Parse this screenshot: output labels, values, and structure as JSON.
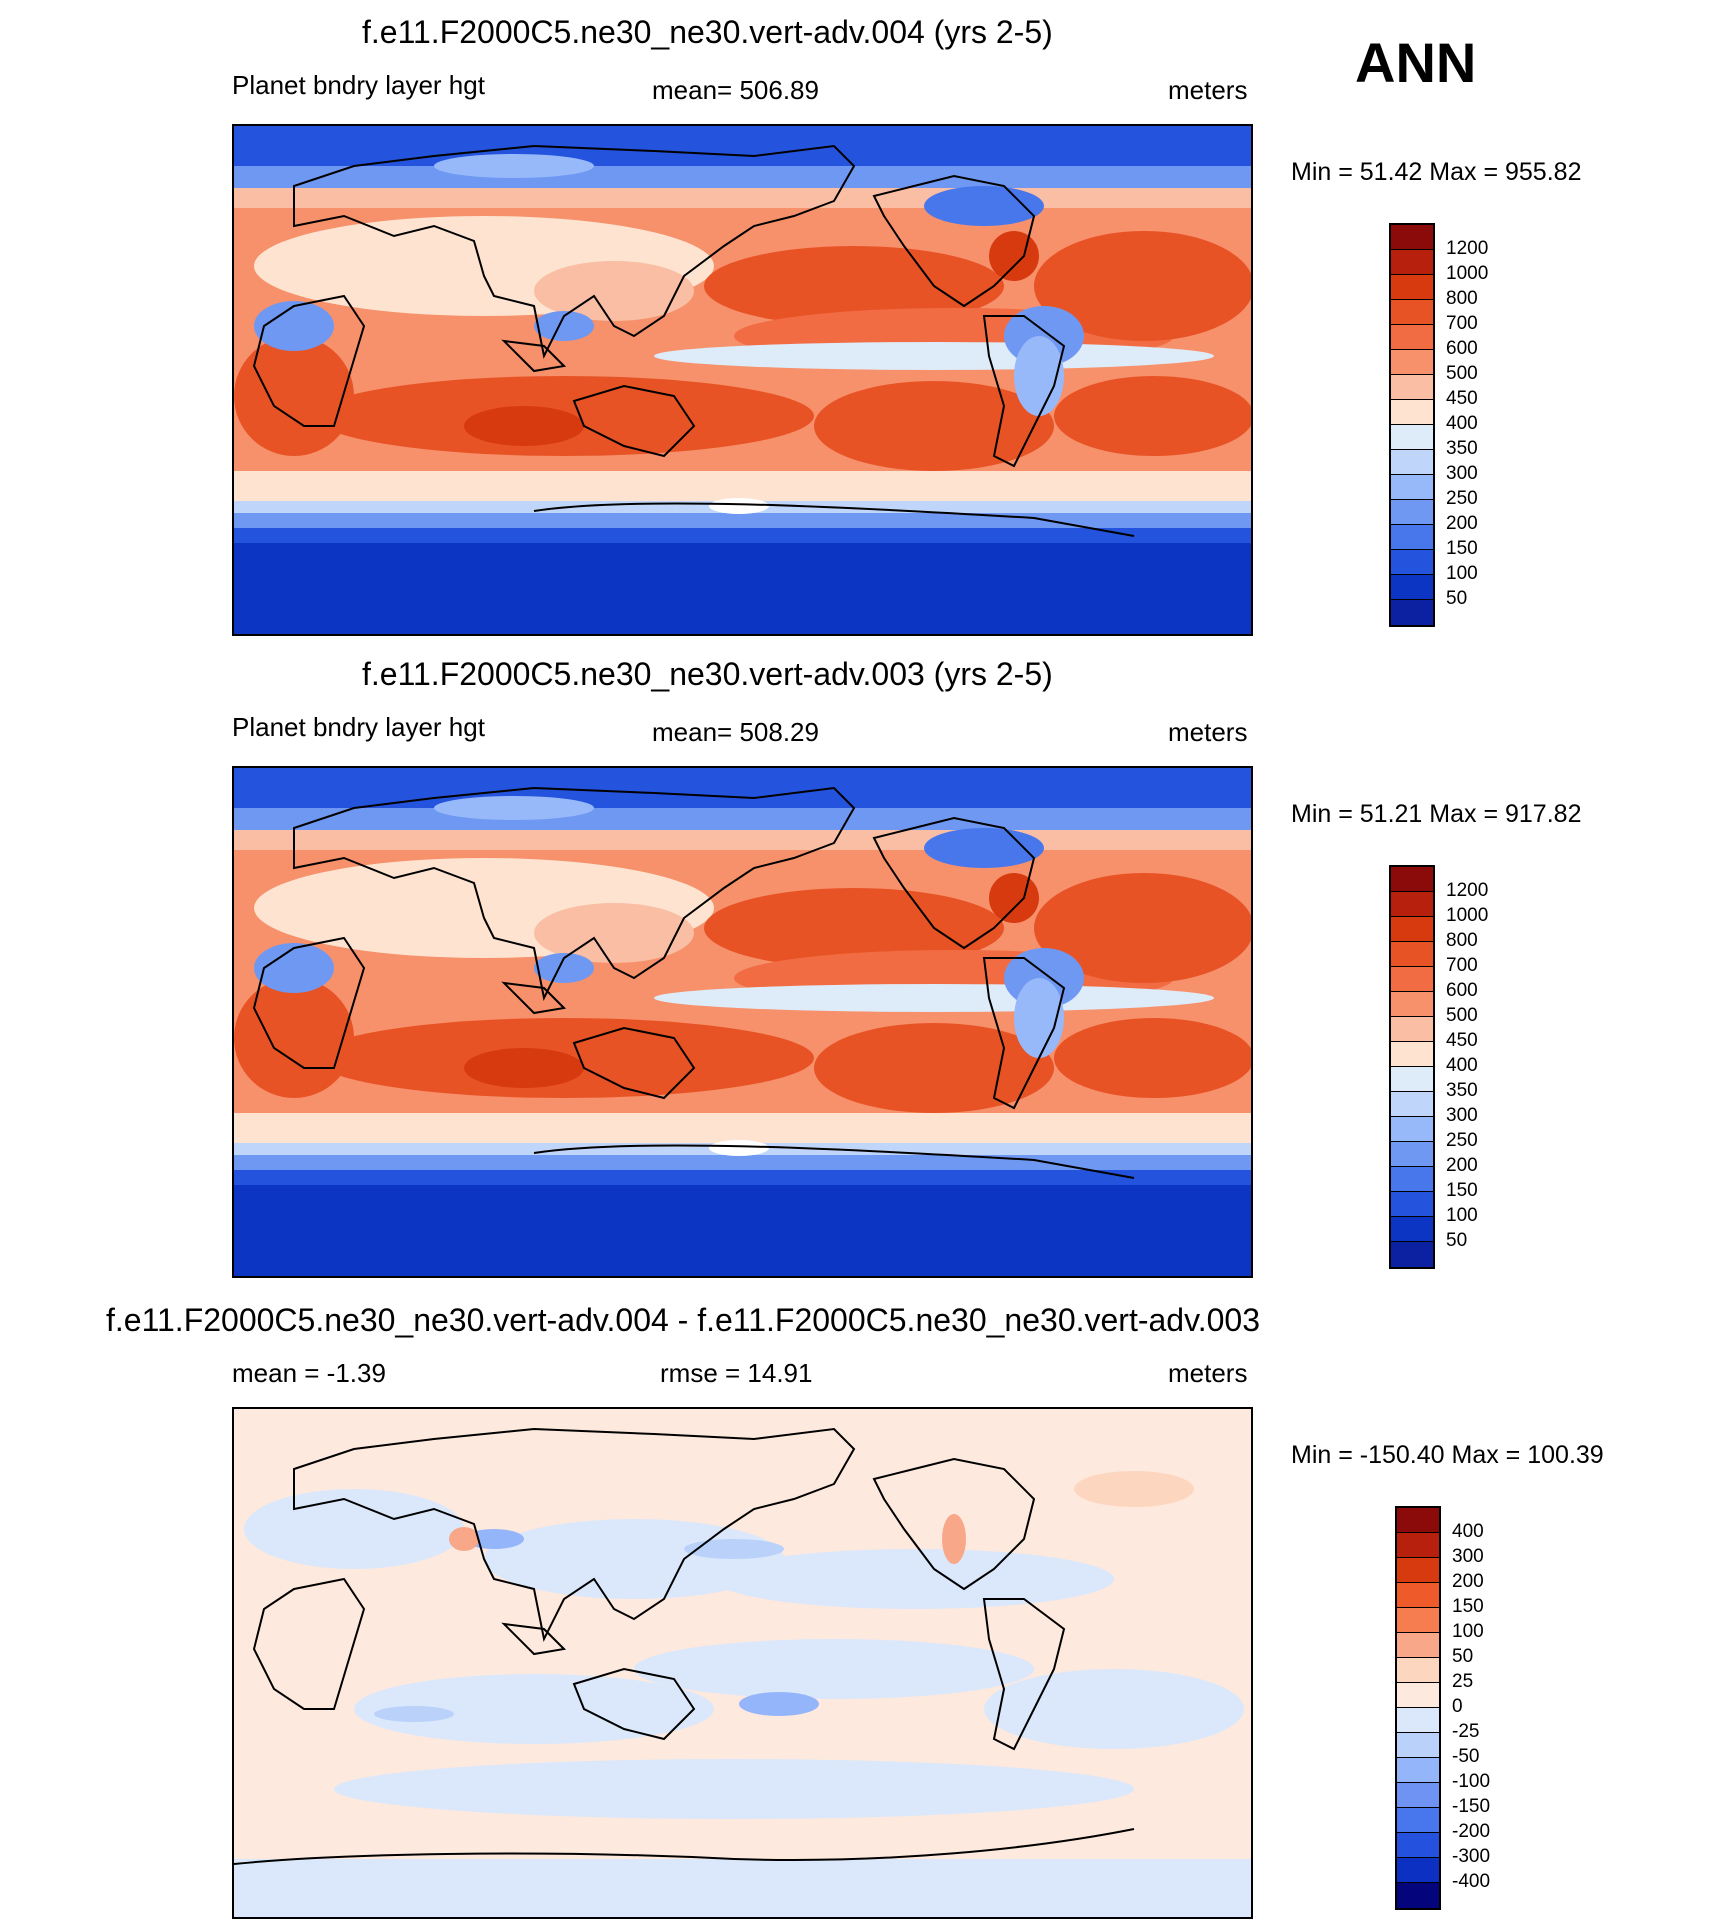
{
  "season": "ANN",
  "colors": {
    "abs": [
      "#8b0a0a",
      "#b8200e",
      "#d83a10",
      "#e85326",
      "#f26c43",
      "#f6916b",
      "#f9bea4",
      "#fde3d0",
      "#deebf9",
      "#bfd6fa",
      "#97b9fa",
      "#6f98f2",
      "#4877ec",
      "#2453dd",
      "#0c35c3",
      "#0c20a2",
      "#05097a"
    ],
    "diff": [
      "#8b0a0a",
      "#b8200e",
      "#d83a10",
      "#ef5a2a",
      "#f67d50",
      "#f8a888",
      "#fdd6bf",
      "#fde9dd",
      "#dbe8fb",
      "#bad1fa",
      "#95b5fa",
      "#6e93f2",
      "#4876ec",
      "#2451dd",
      "#0c30c2",
      "#0c1ba2",
      "#04057c"
    ]
  },
  "panels": [
    {
      "title": "f.e11.F2000C5.ne30_ne30.vert-adv.004 (yrs 2-5)",
      "left": "Planet bndry layer hgt",
      "center": "mean= 506.89",
      "right": "meters",
      "minmax": "Min =  51.42 Max = 955.82",
      "labels": [
        "1200",
        "1000",
        "800",
        "700",
        "600",
        "500",
        "450",
        "400",
        "350",
        "300",
        "250",
        "200",
        "150",
        "100",
        "50"
      ]
    },
    {
      "title": "f.e11.F2000C5.ne30_ne30.vert-adv.003 (yrs 2-5)",
      "left": "Planet bndry layer hgt",
      "center": "mean= 508.29",
      "right": "meters",
      "minmax": "Min =  51.21 Max = 917.82",
      "labels": [
        "1200",
        "1000",
        "800",
        "700",
        "600",
        "500",
        "450",
        "400",
        "350",
        "300",
        "250",
        "200",
        "150",
        "100",
        "50"
      ]
    },
    {
      "title": "f.e11.F2000C5.ne30_ne30.vert-adv.004 - f.e11.F2000C5.ne30_ne30.vert-adv.003",
      "left": "mean =  -1.39",
      "center": "rmse =  14.91",
      "right": "meters",
      "minmax": "Min = -150.40 Max = 100.39",
      "labels": [
        "400",
        "300",
        "200",
        "150",
        "100",
        "50",
        "25",
        "0",
        "-25",
        "-50",
        "-100",
        "-150",
        "-200",
        "-300",
        "-400"
      ]
    }
  ]
}
